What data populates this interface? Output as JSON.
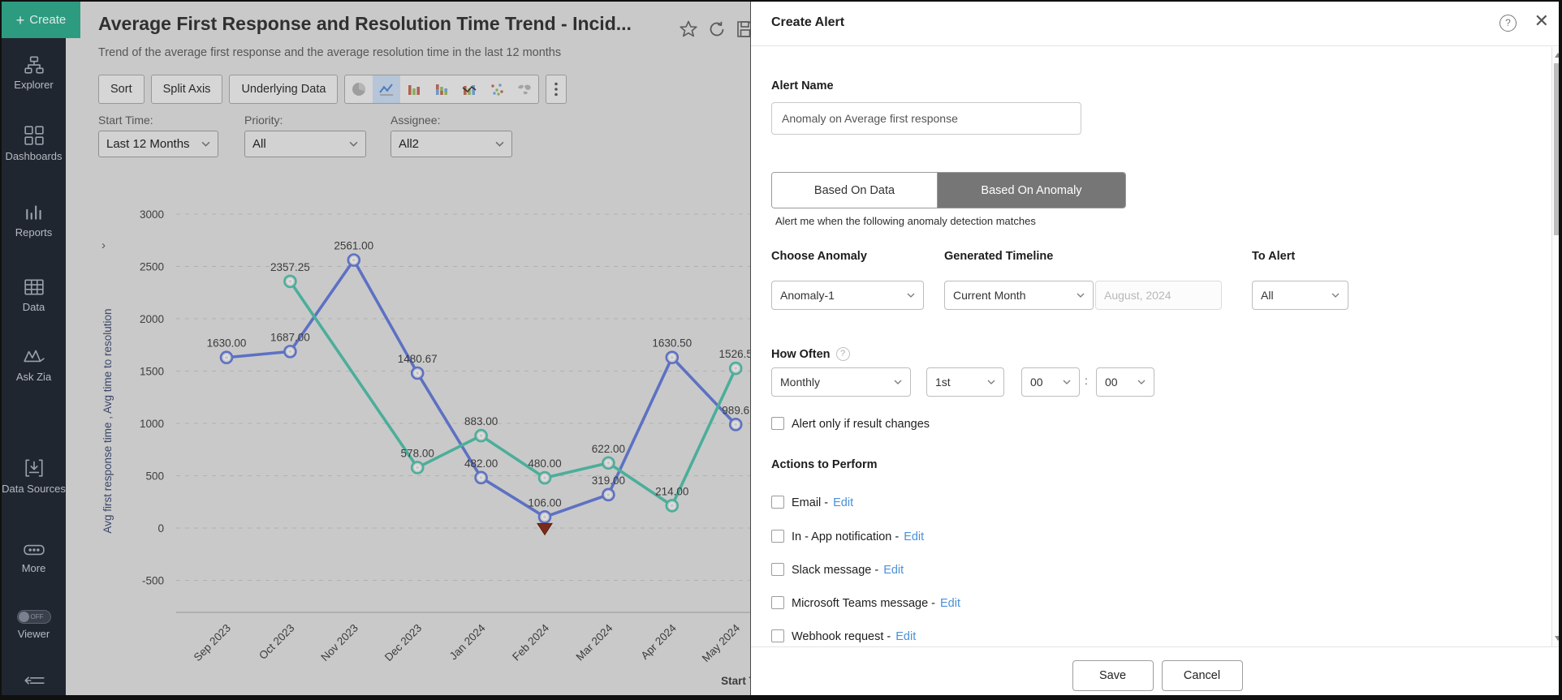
{
  "sidebar": {
    "create_label": "Create",
    "items": [
      {
        "label": "Explorer"
      },
      {
        "label": "Dashboards"
      },
      {
        "label": "Reports"
      },
      {
        "label": "Data"
      },
      {
        "label": "Ask Zia"
      },
      {
        "label": "Data Sources"
      },
      {
        "label": "More"
      }
    ],
    "viewer": {
      "label": "Viewer",
      "toggle_state": "OFF"
    }
  },
  "report": {
    "title": "Average First Response and Resolution Time Trend - Incid...",
    "subtitle": "Trend of the average first response and the average resolution time in the last 12 months",
    "toolbar": {
      "sort": "Sort",
      "split_axis": "Split Axis",
      "underlying_data": "Underlying Data",
      "chart_types": [
        "pie",
        "line",
        "bar",
        "stacked-bar",
        "combo",
        "scatter",
        "map"
      ],
      "selected_chart_type": "line"
    },
    "filters": [
      {
        "label": "Start Time:",
        "value": "Last 12 Months"
      },
      {
        "label": "Priority:",
        "value": "All"
      },
      {
        "label": "Assignee:",
        "value": "All2"
      }
    ]
  },
  "chart_data": {
    "type": "line",
    "title": "Average First Response and Resolution Time Trend - Incid...",
    "categories": [
      "Sep 2023",
      "Oct 2023",
      "Nov 2023",
      "Dec 2023",
      "Jan 2024",
      "Feb 2024",
      "Mar 2024",
      "Apr 2024",
      "May 2024"
    ],
    "series": [
      {
        "name": "Avg first response time",
        "color": "#5d71c3",
        "values": [
          1630,
          1687,
          2561,
          1480.67,
          482,
          106,
          319,
          1630.5,
          989.6
        ],
        "labels": [
          "1630.00",
          "1687.00",
          "2561.00",
          "1480.67",
          "482.00",
          "106.00",
          "319.00",
          "1630.50",
          "989.6"
        ]
      },
      {
        "name": "Avg time to resolution",
        "color": "#4bae9a",
        "values": [
          null,
          2357.25,
          null,
          578,
          883,
          480,
          622,
          214,
          1526.5
        ],
        "labels": [
          null,
          "2357.25",
          null,
          "578.00",
          "883.00",
          "480.00",
          "622.00",
          "214.00",
          "1526.5"
        ]
      }
    ],
    "xlabel": "Start Time",
    "ylabel": "Avg first response time , Avg time to resolution",
    "ylim": [
      -500,
      3000
    ],
    "ytick_step": 500,
    "grid": "dashed-horizontal",
    "legend": "hidden",
    "anomaly": {
      "category": "Feb 2024",
      "series": "Avg first response time",
      "value": 106,
      "marker": "down-triangle",
      "color": "#7a2b1a"
    }
  },
  "alert_panel": {
    "title": "Create Alert",
    "alert_name": {
      "label": "Alert Name",
      "value": "Anomaly on Average first response"
    },
    "tabs": [
      {
        "label": "Based On Data",
        "selected": false
      },
      {
        "label": "Based On Anomaly",
        "selected": true
      }
    ],
    "caption": "Alert me when the following anomaly detection matches",
    "choose_anomaly": {
      "label": "Choose Anomaly",
      "value": "Anomaly-1"
    },
    "generated_timeline": {
      "label": "Generated Timeline",
      "value": "Current Month",
      "date_placeholder": "August, 2024"
    },
    "to_alert": {
      "label": "To Alert",
      "value": "All"
    },
    "how_often": {
      "label": "How Often",
      "frequency": "Monthly",
      "day": "1st",
      "hour": "00",
      "colon": ":",
      "minute": "00"
    },
    "alert_only_if_result_changes": "Alert only if result changes",
    "actions": {
      "heading": "Actions to Perform",
      "items": [
        {
          "label": "Email -",
          "edit": "Edit"
        },
        {
          "label": "In - App notification -",
          "edit": "Edit"
        },
        {
          "label": "Slack message -",
          "edit": "Edit"
        },
        {
          "label": "Microsoft Teams message -",
          "edit": "Edit"
        },
        {
          "label": "Webhook request -",
          "edit": "Edit"
        }
      ]
    },
    "footer": {
      "save": "Save",
      "cancel": "Cancel"
    }
  }
}
